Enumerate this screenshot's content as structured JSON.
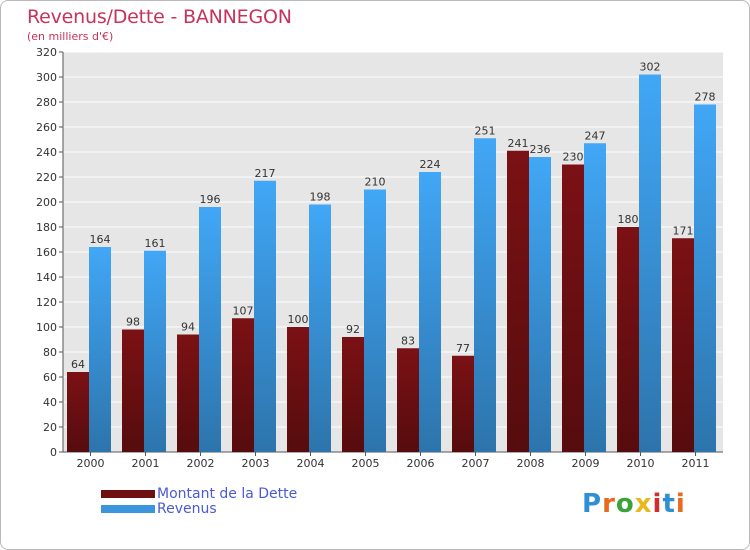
{
  "chart_data": {
    "type": "bar",
    "title": "Revenus/Dette - BANNEGON",
    "subtitle": "(en milliers d'€)",
    "categories": [
      "2000",
      "2001",
      "2002",
      "2003",
      "2004",
      "2005",
      "2006",
      "2007",
      "2008",
      "2009",
      "2010",
      "2011"
    ],
    "series": [
      {
        "name": "Montant de la Dette",
        "color": "#6e0f12",
        "values": [
          64,
          98,
          94,
          107,
          100,
          92,
          83,
          77,
          241,
          230,
          180,
          171
        ]
      },
      {
        "name": "Revenus",
        "color": "#3a95dc",
        "values": [
          164,
          161,
          196,
          217,
          198,
          210,
          224,
          251,
          236,
          247,
          302,
          278
        ]
      }
    ],
    "ylim": [
      0,
      320
    ],
    "yticks": [
      0,
      20,
      40,
      60,
      80,
      100,
      120,
      140,
      160,
      180,
      200,
      220,
      240,
      260,
      280,
      300,
      320
    ],
    "grid": true,
    "legend_position": "bottom-left"
  },
  "logo": {
    "letters": [
      "P",
      "r",
      "o",
      "x",
      "i",
      "t",
      "i"
    ],
    "colors": [
      "#2e8fd6",
      "#e86a1c",
      "#3aa43a",
      "#e8b81c",
      "#d0302c",
      "#2e8fd6",
      "#e86a1c"
    ]
  }
}
